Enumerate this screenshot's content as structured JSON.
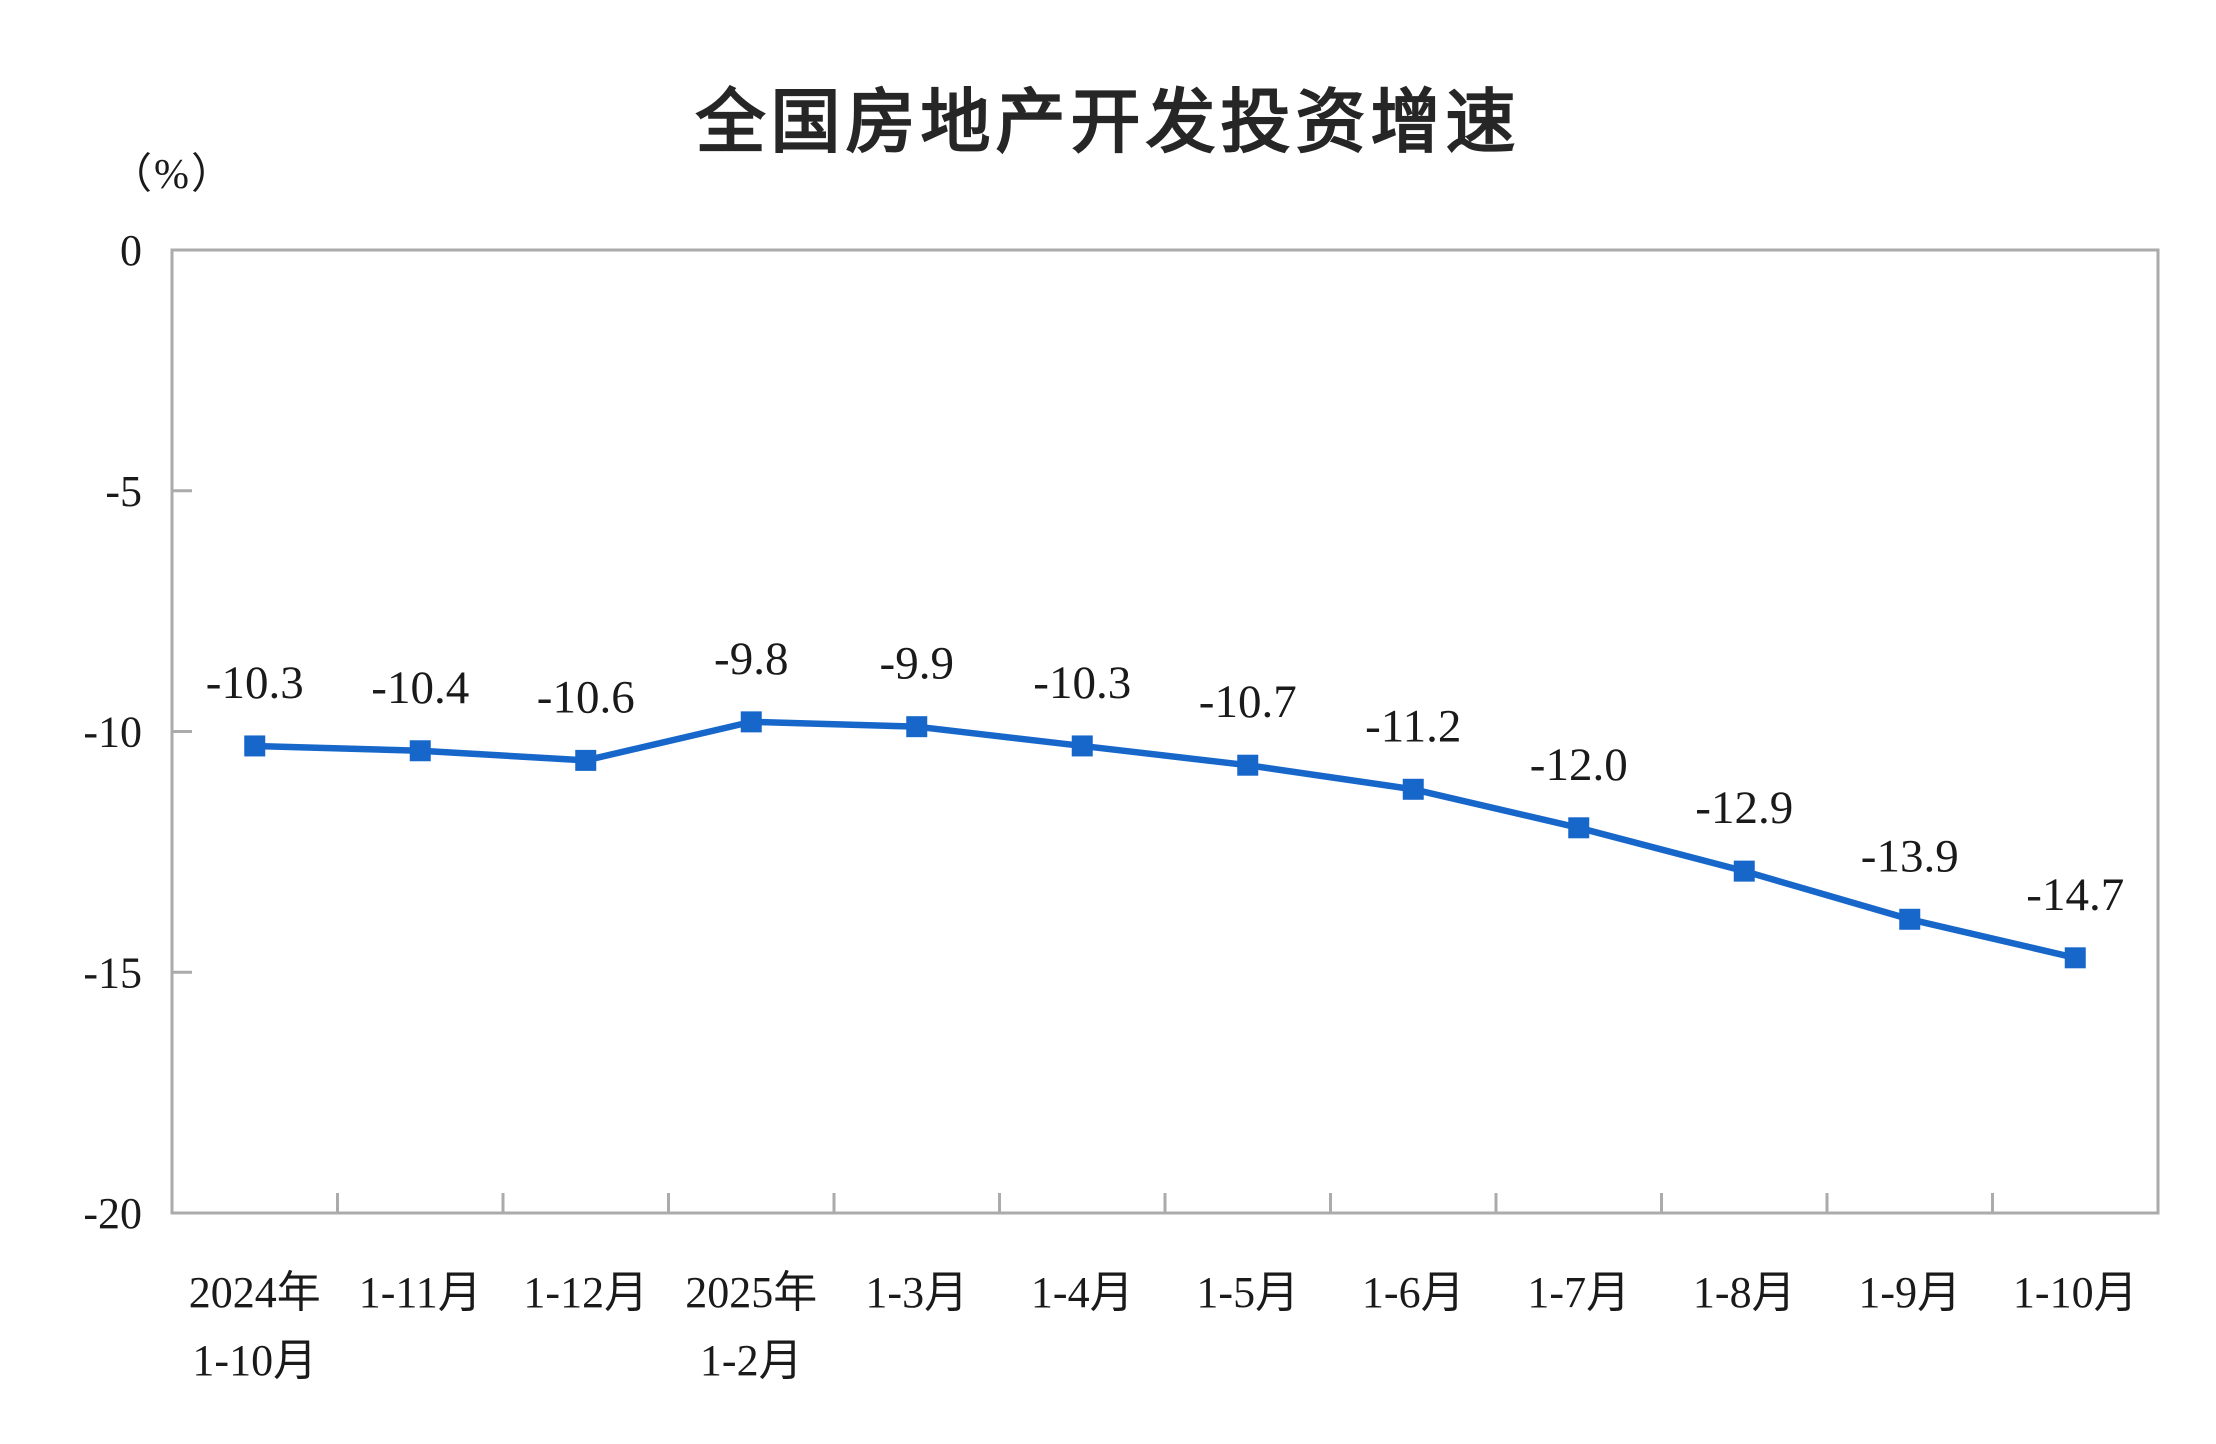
{
  "chart_data": {
    "type": "line",
    "title": "全国房地产开发投资增速",
    "unit_label": "（%）",
    "categories": [
      [
        "2024年",
        "1-10月"
      ],
      [
        "1-11月"
      ],
      [
        "1-12月"
      ],
      [
        "2025年",
        "1-2月"
      ],
      [
        "1-3月"
      ],
      [
        "1-4月"
      ],
      [
        "1-5月"
      ],
      [
        "1-6月"
      ],
      [
        "1-7月"
      ],
      [
        "1-8月"
      ],
      [
        "1-9月"
      ],
      [
        "1-10月"
      ]
    ],
    "values": [
      -10.3,
      -10.4,
      -10.6,
      -9.8,
      -9.9,
      -10.3,
      -10.7,
      -11.2,
      -12.0,
      -12.9,
      -13.9,
      -14.7
    ],
    "point_labels": [
      "-10.3",
      "-10.4",
      "-10.6",
      "-9.8",
      "-9.9",
      "-10.3",
      "-10.7",
      "-11.2",
      "-12.0",
      "-12.9",
      "-13.9",
      "-14.7"
    ],
    "y_ticks": [
      0,
      -5,
      -10,
      -15,
      -20
    ],
    "y_tick_labels": [
      "0",
      "-5",
      "-10",
      "-15",
      "-20"
    ],
    "ylim": [
      -20,
      0
    ],
    "grid": false,
    "legend": "none",
    "line_color": "#1767CB",
    "marker": "square",
    "axis_color": "#ABABAB",
    "text_color": "#1A1A1A"
  }
}
